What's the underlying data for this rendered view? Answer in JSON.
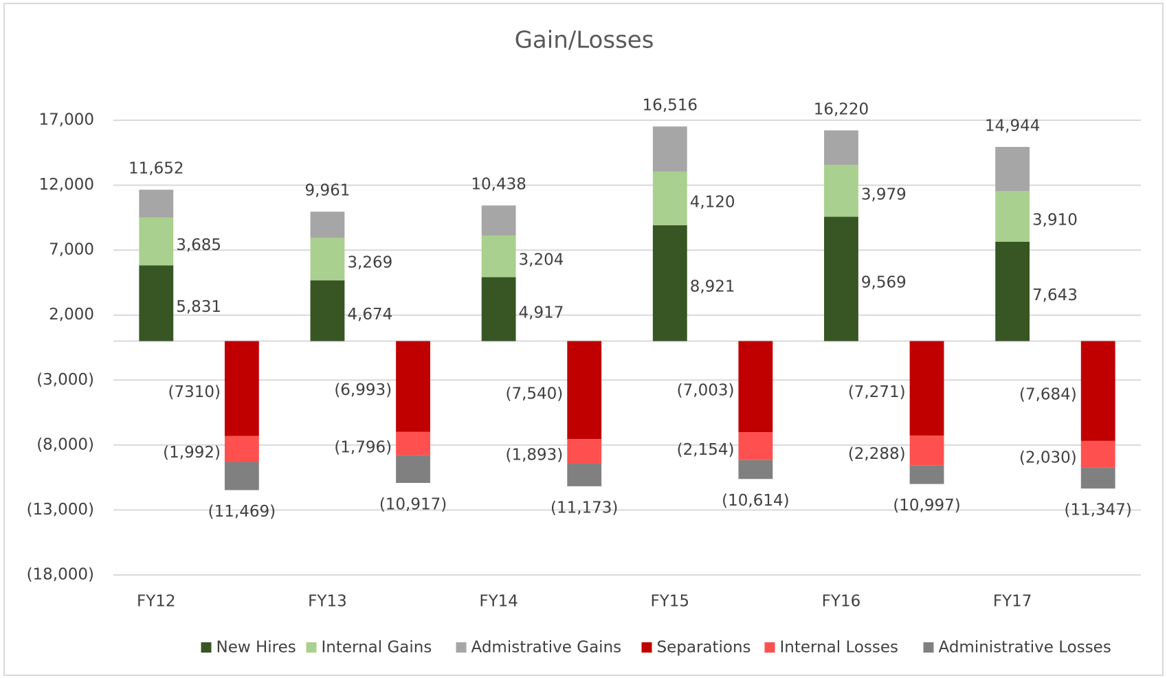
{
  "chart_data": {
    "type": "bar",
    "title": "Gain/Losses",
    "categories": [
      "FY12",
      "FY13",
      "FY14",
      "FY15",
      "FY16",
      "FY17"
    ],
    "series": [
      {
        "name": "New Hires",
        "color": "#375623",
        "values": [
          5831,
          4674,
          4917,
          8921,
          9569,
          7643
        ],
        "value_labels": [
          "5,831",
          "4,674",
          "4,917",
          "8,921",
          "9,569",
          "7,643"
        ]
      },
      {
        "name": "Internal Gains",
        "color": "#a9d08e",
        "values": [
          3685,
          3269,
          3204,
          4120,
          3979,
          3910
        ],
        "value_labels": [
          "3,685",
          "3,269",
          "3,204",
          "4,120",
          "3,979",
          "3,910"
        ]
      },
      {
        "name": "Admistrative Gains",
        "color": "#a6a6a6",
        "values": [
          2136,
          2018,
          2317,
          3475,
          2672,
          3391
        ]
      },
      {
        "name": "Separations",
        "color": "#c00000",
        "values": [
          -7310,
          -6993,
          -7540,
          -7003,
          -7271,
          -7684
        ],
        "value_labels": [
          "(7310)",
          "(6,993)",
          "(7,540)",
          "(7,003)",
          "(7,271)",
          "(7,684)"
        ]
      },
      {
        "name": "Internal Losses",
        "color": "#ff5050",
        "values": [
          -1992,
          -1796,
          -1893,
          -2154,
          -2288,
          -2030
        ],
        "value_labels": [
          "(1,992)",
          "(1,796)",
          "(1,893)",
          "(2,154)",
          "(2,288)",
          "(2,030)"
        ]
      },
      {
        "name": "Administrative Losses",
        "color": "#808080",
        "values": [
          -2167,
          -2128,
          -1740,
          -1457,
          -1438,
          -1633
        ]
      }
    ],
    "gain_totals": {
      "values": [
        11652,
        9961,
        10438,
        16516,
        16220,
        14944
      ],
      "value_labels": [
        "11,652",
        "9,961",
        "10,438",
        "16,516",
        "16,220",
        "14,944"
      ]
    },
    "loss_totals": {
      "values": [
        -11469,
        -10917,
        -11173,
        -10614,
        -10997,
        -11347
      ],
      "value_labels": [
        "(11,469)",
        "(10,917)",
        "(11,173)",
        "(10,614)",
        "(10,997)",
        "(11,347)"
      ]
    },
    "ylim": [
      -18000,
      17000
    ],
    "yticks": [
      {
        "value": 17000,
        "label": "17,000"
      },
      {
        "value": 12000,
        "label": "12,000"
      },
      {
        "value": 7000,
        "label": "7,000"
      },
      {
        "value": 2000,
        "label": "2,000"
      },
      {
        "value": -3000,
        "label": "(3,000)"
      },
      {
        "value": -8000,
        "label": "(8,000)"
      },
      {
        "value": -13000,
        "label": "(13,000)"
      },
      {
        "value": -18000,
        "label": "(18,000)"
      }
    ],
    "grid": true,
    "legend": "bottom"
  }
}
